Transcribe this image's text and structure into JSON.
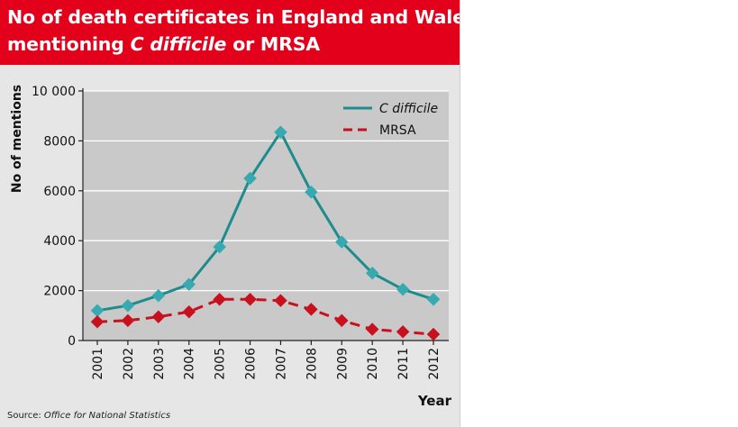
{
  "title": {
    "line1": "No of death certificates in England and Wales",
    "line2_prefix": "mentioning ",
    "line2_italic": "C difficile",
    "line2_suffix": " or MRSA"
  },
  "source": {
    "prefix": "Source: ",
    "italic": "Office for National Statistics"
  },
  "colors": {
    "title_bg": "#e3001b",
    "plot_bg": "#c9c9c9",
    "panel_bg": "#e6e6e6",
    "cdiff": "#1e8c8c",
    "cdiff_marker": "#36aab0",
    "mrsa": "#c8101e"
  },
  "chart_data": {
    "type": "line",
    "title": "No of death certificates in England and Wales mentioning C difficile or MRSA",
    "xlabel": "Year",
    "ylabel": "No of mentions",
    "categories": [
      "2001",
      "2002",
      "2003",
      "2004",
      "2005",
      "2006",
      "2007",
      "2008",
      "2009",
      "2010",
      "2011",
      "2012"
    ],
    "ylim": [
      0,
      10000
    ],
    "yticks": [
      0,
      2000,
      4000,
      6000,
      8000,
      10000
    ],
    "ytick_labels": [
      "0",
      "2000",
      "4000",
      "6000",
      "8000",
      "10 000"
    ],
    "grid": "horizontal",
    "legend_position": "top-right",
    "series": [
      {
        "name": "C difficile",
        "style": "solid",
        "marker": "diamond",
        "values": [
          1200,
          1400,
          1800,
          2250,
          3750,
          6500,
          8350,
          5950,
          3950,
          2700,
          2050,
          1650
        ]
      },
      {
        "name": "MRSA",
        "style": "dashed",
        "marker": "diamond",
        "values": [
          750,
          800,
          950,
          1150,
          1650,
          1650,
          1600,
          1250,
          800,
          450,
          350,
          250
        ]
      }
    ]
  }
}
